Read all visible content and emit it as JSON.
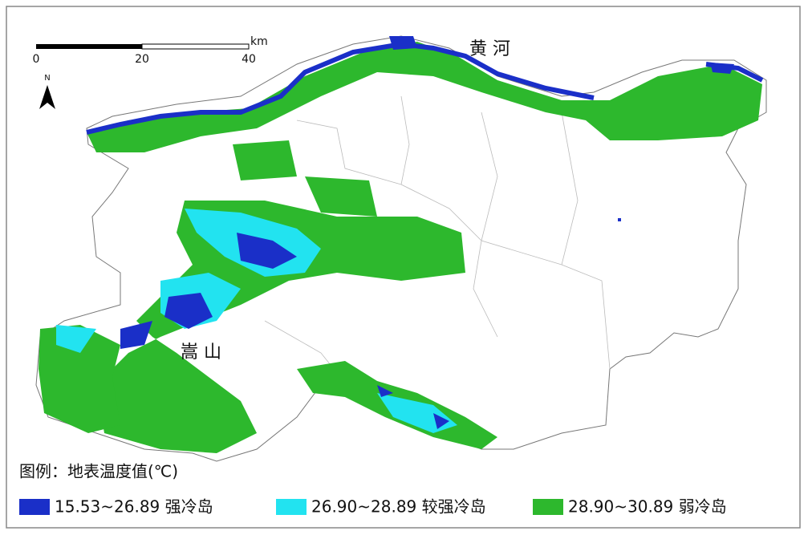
{
  "scale_bar": {
    "unit": "km",
    "ticks": [
      "0",
      "20",
      "40"
    ]
  },
  "north": "N",
  "place_labels": [
    "黄 河",
    "嵩 山"
  ],
  "legend": {
    "title": "图例：地表温度值(℃)",
    "items": [
      {
        "label": "15.53~26.89 强冷岛",
        "color": "#1a2fc8"
      },
      {
        "label": "26.90~28.89 较强冷岛",
        "color": "#22e3f0"
      },
      {
        "label": "28.90~30.89 弱冷岛",
        "color": "#2db82d"
      }
    ]
  }
}
